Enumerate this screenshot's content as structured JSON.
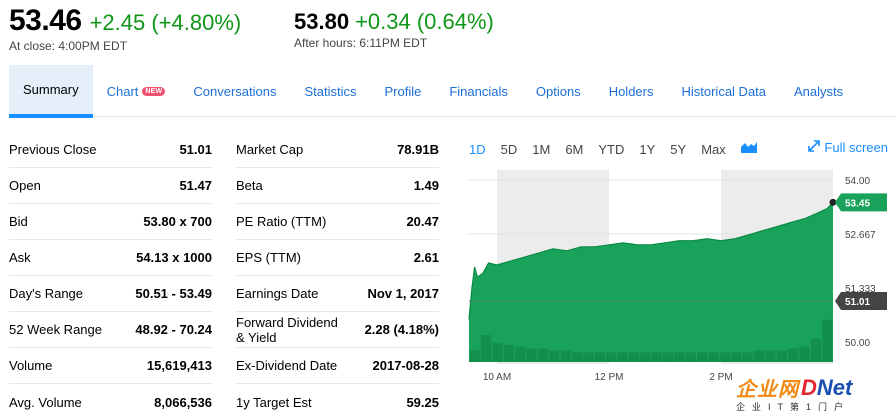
{
  "quote": {
    "close": {
      "price": "53.46",
      "change": "+2.45 (+4.80%)",
      "note": "At close: 4:00PM EDT"
    },
    "after_hours": {
      "price": "53.80",
      "change": "+0.34 (0.64%)",
      "note": "After hours: 6:11PM EDT"
    },
    "change_color": "#109618"
  },
  "tabs": [
    {
      "label": "Summary",
      "active": true
    },
    {
      "label": "Chart",
      "badge": "NEW"
    },
    {
      "label": "Conversations"
    },
    {
      "label": "Statistics"
    },
    {
      "label": "Profile"
    },
    {
      "label": "Financials"
    },
    {
      "label": "Options"
    },
    {
      "label": "Holders"
    },
    {
      "label": "Historical Data"
    },
    {
      "label": "Analysts"
    }
  ],
  "stats_left": [
    {
      "label": "Previous Close",
      "value": "51.01"
    },
    {
      "label": "Open",
      "value": "51.47"
    },
    {
      "label": "Bid",
      "value": "53.80 x 700"
    },
    {
      "label": "Ask",
      "value": "54.13 x 1000"
    },
    {
      "label": "Day's Range",
      "value": "50.51 - 53.49"
    },
    {
      "label": "52 Week Range",
      "value": "48.92 - 70.24"
    },
    {
      "label": "Volume",
      "value": "15,619,413"
    },
    {
      "label": "Avg. Volume",
      "value": "8,066,536"
    }
  ],
  "stats_right": [
    {
      "label": "Market Cap",
      "value": "78.91B"
    },
    {
      "label": "Beta",
      "value": "1.49"
    },
    {
      "label": "PE Ratio (TTM)",
      "value": "20.47"
    },
    {
      "label": "EPS (TTM)",
      "value": "2.61"
    },
    {
      "label": "Earnings Date",
      "value": "Nov 1, 2017"
    },
    {
      "label": "Forward Dividend & Yield",
      "value": "2.28 (4.18%)"
    },
    {
      "label": "Ex-Dividend Date",
      "value": "2017-08-28"
    },
    {
      "label": "1y Target Est",
      "value": "59.25"
    }
  ],
  "chart_controls": {
    "ranges": [
      "1D",
      "5D",
      "1M",
      "6M",
      "YTD",
      "1Y",
      "5Y",
      "Max"
    ],
    "active_range": "1D",
    "chart_type_icon": "mountain-chart-icon",
    "fullscreen_label": "Full screen",
    "accent": "#188fff"
  },
  "chart_data": {
    "type": "area",
    "x_axis": {
      "ticks": [
        "10 AM",
        "12 PM",
        "2 PM"
      ]
    },
    "y_axis": {
      "ticks": [
        "54.00",
        "52.667",
        "51.333",
        "50.00"
      ],
      "ylim": [
        49.5,
        54.25
      ]
    },
    "last_price_label": "53.45",
    "previous_close_label": "51.01",
    "previous_close": 51.01,
    "fill_color": "#19a35a",
    "line_color": "#0b8a45",
    "series": [
      {
        "x": [
          9.5,
          9.55,
          9.6,
          9.65,
          9.75,
          9.85,
          10.0,
          10.25,
          10.5,
          10.75,
          11.0,
          11.25,
          11.5,
          11.75,
          12.0,
          12.25,
          12.5,
          12.75,
          13.0,
          13.25,
          13.5,
          13.75,
          14.0,
          14.25,
          14.5,
          14.75,
          15.0,
          15.25,
          15.5,
          15.75,
          15.9,
          16.0
        ],
        "y": [
          50.55,
          51.3,
          51.85,
          51.6,
          51.7,
          51.95,
          51.9,
          52.0,
          52.1,
          52.2,
          52.3,
          52.25,
          52.35,
          52.35,
          52.4,
          52.45,
          52.4,
          52.4,
          52.45,
          52.5,
          52.5,
          52.55,
          52.5,
          52.55,
          52.65,
          52.75,
          52.85,
          52.95,
          53.05,
          53.2,
          53.3,
          53.45
        ]
      }
    ],
    "volume_relative": [
      0.06,
      0.14,
      0.1,
      0.09,
      0.08,
      0.07,
      0.07,
      0.06,
      0.06,
      0.05,
      0.05,
      0.05,
      0.05,
      0.05,
      0.05,
      0.05,
      0.05,
      0.05,
      0.05,
      0.05,
      0.05,
      0.05,
      0.05,
      0.05,
      0.05,
      0.06,
      0.06,
      0.06,
      0.07,
      0.08,
      0.12,
      0.22
    ]
  },
  "watermark": {
    "cn": "企业网",
    "en_d": "D",
    "en_rest": "Net",
    "sub": "企业IT第1门户"
  }
}
